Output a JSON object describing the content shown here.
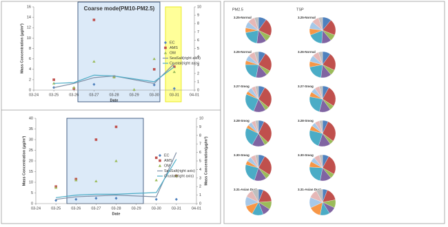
{
  "pie_columns": [
    "PM2.5",
    "TSP"
  ],
  "pie_colors": [
    "#4f81bd",
    "#c0504d",
    "#9bbb59",
    "#8064a2",
    "#4bacc6",
    "#f79646",
    "#a6c8e8",
    "#e6b8b7",
    "#bfbfbf"
  ],
  "chart_data": [
    {
      "type": "combo",
      "title": "Coarse mode(PM10-PM2.5)",
      "x_label": "Date",
      "y_label": "Mass Concentration (μg/m³)",
      "categories": [
        "03-24",
        "03-25",
        "03-26",
        "03-27",
        "03-28",
        "03-29",
        "03-30",
        "03-31",
        "04-01"
      ],
      "ylim": [
        0,
        16
      ],
      "yticks": [
        0,
        2,
        4,
        6,
        8,
        10,
        12,
        14,
        16
      ],
      "y2lim": [
        0,
        10
      ],
      "y2ticks": [
        0,
        1,
        2,
        3,
        4,
        5,
        6,
        7,
        8,
        9,
        10
      ],
      "series": [
        {
          "name": "EC",
          "type": "scatter",
          "marker": "diamond",
          "color": "#4f81bd",
          "x": [
            "03-25",
            "03-26",
            "03-27",
            "03-28",
            "03-30",
            "03-31"
          ],
          "values": [
            0.5,
            0.3,
            1.1,
            2.5,
            1.0,
            0.3
          ]
        },
        {
          "name": "AMS",
          "type": "scatter",
          "marker": "square",
          "color": "#c0504d",
          "x": [
            "03-25",
            "03-26",
            "03-27",
            "03-28",
            "03-30",
            "03-31"
          ],
          "values": [
            2.0,
            0.3,
            13.5,
            2.6,
            4.0,
            4.5
          ]
        },
        {
          "name": "OM",
          "type": "scatter",
          "marker": "triangle",
          "color": "#9bbb59",
          "x": [
            "03-25",
            "03-26",
            "03-27",
            "03-28",
            "03-29",
            "03-30",
            "03-31"
          ],
          "values": [
            1.3,
            0.5,
            5.5,
            2.5,
            0.1,
            6.0,
            3.5
          ]
        },
        {
          "name": "SeaSalt(right axis)",
          "type": "line",
          "axis": "y2",
          "color": "#7f8fa6",
          "x": [
            "03-25",
            "03-26",
            "03-27",
            "03-28",
            "03-30",
            "03-31"
          ],
          "values": [
            0.3,
            0.8,
            1.5,
            1.7,
            0.8,
            3.2
          ]
        },
        {
          "name": "Crustal(right axis)",
          "type": "line",
          "axis": "y2",
          "color": "#4bacc6",
          "x": [
            "03-25",
            "03-26",
            "03-27",
            "03-28",
            "03-30",
            "03-31"
          ],
          "values": [
            0.8,
            0.9,
            1.8,
            1.7,
            1.0,
            2.8
          ]
        }
      ]
    },
    {
      "type": "combo",
      "x_label": "Date",
      "y_label": "Mass Concentration (μg/m³)",
      "y2_label": "Mass Concentration(μg/m³)",
      "categories": [
        "03-24",
        "03-25",
        "03-26",
        "03-27",
        "03-28",
        "03-29",
        "03-30",
        "03-31",
        "04-01"
      ],
      "ylim": [
        0,
        40
      ],
      "yticks": [
        0,
        5,
        10,
        15,
        20,
        25,
        30,
        35,
        40
      ],
      "y2lim": [
        0,
        10
      ],
      "y2ticks": [
        0,
        1,
        2,
        3,
        4,
        5,
        6,
        7,
        8,
        9,
        10
      ],
      "series": [
        {
          "name": "EC",
          "type": "scatter",
          "marker": "diamond",
          "color": "#4f81bd",
          "x": [
            "03-25",
            "03-26",
            "03-27",
            "03-28",
            "03-30",
            "03-31"
          ],
          "values": [
            1.5,
            2,
            2.5,
            2.5,
            2,
            2
          ]
        },
        {
          "name": "AMS",
          "type": "scatter",
          "marker": "square",
          "color": "#c0504d",
          "x": [
            "03-25",
            "03-26",
            "03-27",
            "03-28",
            "03-30",
            "03-31"
          ],
          "values": [
            8,
            11.5,
            30,
            36,
            21.5,
            13
          ]
        },
        {
          "name": "OM",
          "type": "scatter",
          "marker": "triangle",
          "color": "#9bbb59",
          "x": [
            "03-25",
            "03-26",
            "03-27",
            "03-28",
            "03-30",
            "03-31"
          ],
          "values": [
            7.5,
            11,
            10.5,
            20,
            11,
            13
          ]
        },
        {
          "name": "SeaSalt(right axis)",
          "type": "line",
          "axis": "y2",
          "color": "#7f8fa6",
          "x": [
            "03-25",
            "03-26",
            "03-27",
            "03-28",
            "03-30",
            "03-31"
          ],
          "values": [
            0.5,
            0.8,
            0.9,
            1.0,
            0.8,
            6.0
          ]
        },
        {
          "name": "Crustal(right axis)",
          "type": "line",
          "axis": "y2",
          "color": "#4bacc6",
          "x": [
            "03-25",
            "03-26",
            "03-27",
            "03-28",
            "03-30",
            "03-31"
          ],
          "values": [
            0.7,
            1.0,
            1.1,
            1.1,
            1.3,
            5.2
          ]
        }
      ]
    },
    {
      "type": "pie",
      "title": "3.25-Normal",
      "values": [
        10,
        22,
        8,
        12,
        20,
        6,
        8,
        9,
        5
      ]
    },
    {
      "type": "pie",
      "title": "3.26-Normal",
      "values": [
        9,
        24,
        6,
        14,
        22,
        5,
        7,
        8,
        5
      ]
    },
    {
      "type": "pie",
      "title": "3.27-Smog",
      "values": [
        8,
        28,
        5,
        15,
        25,
        4,
        6,
        5,
        4
      ]
    },
    {
      "type": "pie",
      "title": "3.28-Smog",
      "values": [
        7,
        30,
        5,
        16,
        24,
        4,
        5,
        5,
        4
      ]
    },
    {
      "type": "pie",
      "title": "3.30-Smog",
      "values": [
        8,
        26,
        6,
        15,
        24,
        5,
        6,
        6,
        4
      ]
    },
    {
      "type": "pie",
      "title": "3.31-Asian Dust",
      "values": [
        6,
        18,
        10,
        10,
        14,
        12,
        12,
        10,
        8
      ]
    },
    {
      "type": "pie",
      "title": "3.25-Normal",
      "values": [
        11,
        20,
        8,
        12,
        18,
        8,
        9,
        9,
        5
      ]
    },
    {
      "type": "pie",
      "title": "3.26-Normal",
      "values": [
        10,
        22,
        7,
        13,
        20,
        7,
        8,
        8,
        5
      ]
    },
    {
      "type": "pie",
      "title": "3.27-Smog",
      "values": [
        8,
        26,
        6,
        14,
        24,
        6,
        6,
        6,
        4
      ]
    },
    {
      "type": "pie",
      "title": "3.28-Smog",
      "values": [
        7,
        28,
        5,
        15,
        24,
        6,
        5,
        6,
        4
      ]
    },
    {
      "type": "pie",
      "title": "3.30-Smog",
      "values": [
        8,
        25,
        6,
        14,
        23,
        7,
        6,
        7,
        4
      ]
    },
    {
      "type": "pie",
      "title": "3.31-Asian Dust",
      "values": [
        6,
        16,
        10,
        9,
        12,
        15,
        13,
        11,
        8
      ]
    }
  ]
}
